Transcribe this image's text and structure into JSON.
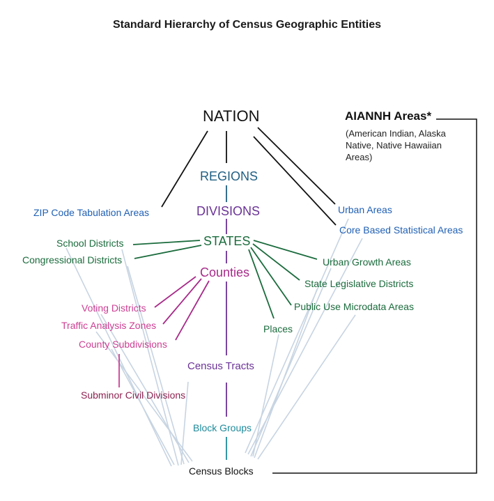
{
  "title": "Standard Hierarchy of Census Geographic Entities",
  "nodes": {
    "nation": "NATION",
    "regions": "REGIONS",
    "divisions": "DIVISIONS",
    "states": "STATES",
    "counties": "Counties",
    "zcta": "ZIP Code Tabulation Areas",
    "school_districts": "School Districts",
    "congressional_districts": "Congressional Districts",
    "voting_districts": "Voting Districts",
    "traffic_analysis_zones": "Traffic Analysis Zones",
    "county_subdivisions": "County Subdivisions",
    "subminor_civil_divisions": "Subminor Civil Divisions",
    "census_tracts": "Census Tracts",
    "block_groups": "Block Groups",
    "census_blocks": "Census Blocks",
    "places": "Places",
    "urban_areas": "Urban Areas",
    "core_based_statistical_areas": "Core Based Statistical Areas",
    "urban_growth_areas": "Urban Growth Areas",
    "state_legislative_districts": "State Legislative Districts",
    "public_use_microdata_areas": "Public Use Microdata Areas"
  },
  "aiannh": {
    "heading": "AIANNH Areas*",
    "description_lines": [
      "(American Indian, Alaska",
      "Native, Native Hawaiian",
      "Areas)"
    ]
  },
  "colors": {
    "black": "#111111",
    "teal_blue": "#1f5f82",
    "purple": "#6a3296",
    "green": "#1a6b3c",
    "magenta": "#cc3f93",
    "maroon": "#8c2350",
    "bright_blue": "#2060b4",
    "cyan": "#1d8a9a",
    "light_blue": "#c7d4e2"
  }
}
